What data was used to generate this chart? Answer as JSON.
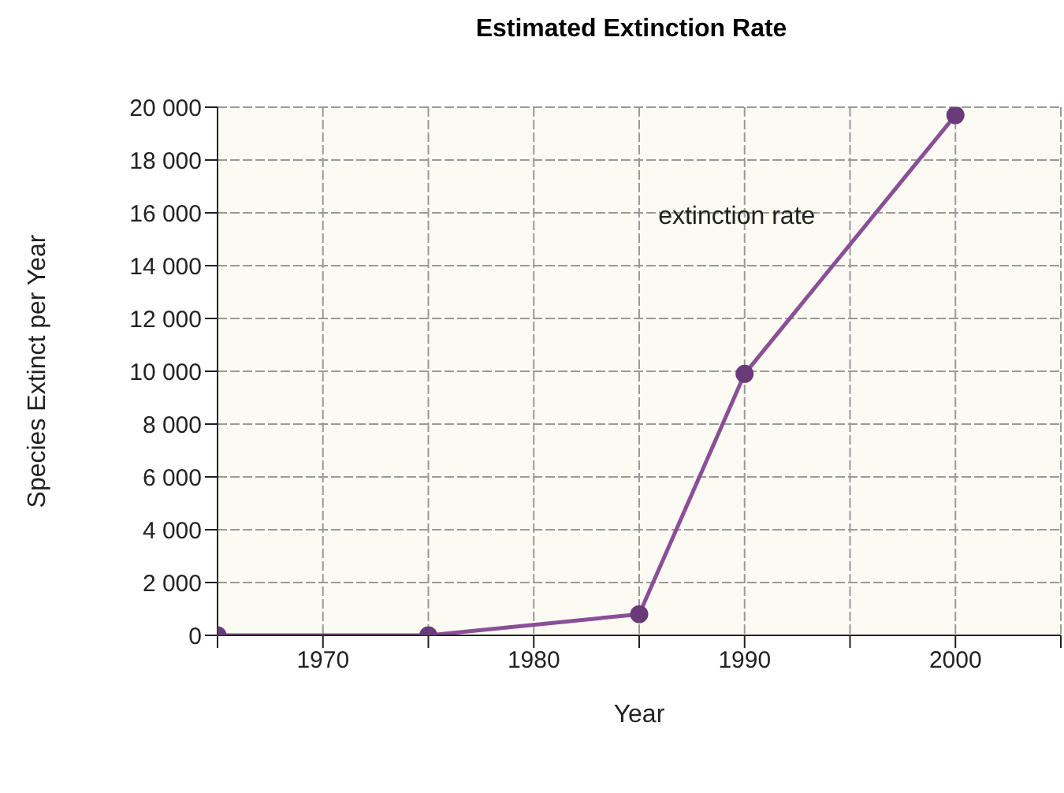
{
  "chart_data": {
    "type": "line",
    "title": "Estimated Extinction Rate",
    "xlabel": "Year",
    "ylabel": "Species Extinct per Year",
    "x": [
      1965,
      1975,
      1985,
      1990,
      2000
    ],
    "series": [
      {
        "name": "extinction rate",
        "color": "#8a4f96",
        "values": [
          0,
          0,
          800,
          9900,
          19700
        ]
      }
    ],
    "xlim": [
      1965,
      2005
    ],
    "xticks": [
      {
        "value": 1965,
        "label": null
      },
      1970,
      {
        "value": 1975,
        "label": null
      },
      1980,
      {
        "value": 1985,
        "label": null
      },
      1990,
      {
        "value": 1995,
        "label": null
      },
      2000,
      {
        "value": 2005,
        "label": null
      }
    ],
    "ylim": [
      0,
      20000
    ],
    "yticks": [
      {
        "value": 0,
        "label": "0"
      },
      {
        "value": 2000,
        "label": "2 000"
      },
      {
        "value": 4000,
        "label": "4 000"
      },
      {
        "value": 6000,
        "label": "6 000"
      },
      {
        "value": 8000,
        "label": "8 000"
      },
      {
        "value": 10000,
        "label": "10 000"
      },
      {
        "value": 12000,
        "label": "12 000"
      },
      {
        "value": 14000,
        "label": "14 000"
      },
      {
        "value": 16000,
        "label": "16 000"
      },
      {
        "value": 18000,
        "label": "18 000"
      },
      {
        "value": 20000,
        "label": "20 000"
      }
    ],
    "grid": true,
    "legend": false,
    "marker": "circle",
    "line_style": "solid"
  }
}
